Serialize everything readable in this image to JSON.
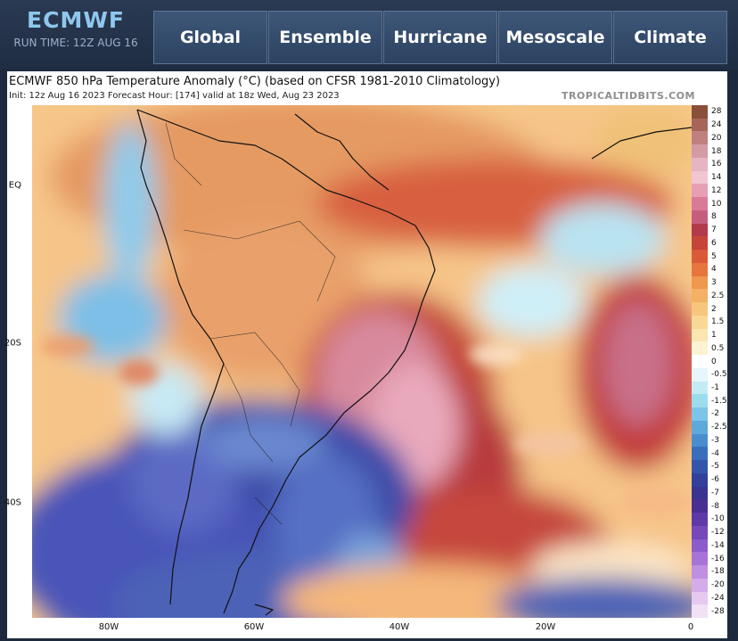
{
  "header": {
    "brand": "ECMWF",
    "run_time": "RUN TIME: 12Z AUG 16"
  },
  "nav": {
    "items": [
      {
        "label": "Global"
      },
      {
        "label": "Ensemble"
      },
      {
        "label": "Hurricane"
      },
      {
        "label": "Mesoscale"
      },
      {
        "label": "Climate"
      }
    ]
  },
  "map": {
    "title": "ECMWF 850 hPa Temperature Anomaly (°C) (based on CFSR 1981-2010 Climatology)",
    "subtitle": "Init: 12z Aug 16 2023   Forecast Hour: [174]   valid at 18z Wed, Aug 23 2023",
    "site": "TROPICALTIDBITS.COM",
    "lat_labels": [
      "EQ",
      "20S",
      "40S"
    ],
    "lon_labels": [
      "80W",
      "60W",
      "40W",
      "20W",
      "0"
    ]
  },
  "colorbar": {
    "labels": [
      "28",
      "24",
      "20",
      "18",
      "16",
      "14",
      "12",
      "10",
      "8",
      "7",
      "6",
      "5",
      "4",
      "3",
      "2.5",
      "2",
      "1.5",
      "1",
      "0.5",
      "0",
      "-0.5",
      "-1",
      "-1.5",
      "-2",
      "-2.5",
      "-3",
      "-4",
      "-5",
      "-6",
      "-7",
      "-8",
      "-10",
      "-12",
      "-14",
      "-16",
      "-18",
      "-20",
      "-24",
      "-28"
    ],
    "colors": [
      "#8a4f3b",
      "#a7655a",
      "#c08080",
      "#d49aa6",
      "#e6b4c2",
      "#f1c6d2",
      "#e89fb4",
      "#d87a98",
      "#c55e7e",
      "#b23a4a",
      "#c64539",
      "#d85a38",
      "#e6763d",
      "#ef9850",
      "#f4b064",
      "#f7c57c",
      "#f9d794",
      "#fbe6b1",
      "#fdf2d2",
      "#ffffff",
      "#e6f6fa",
      "#c2ebf4",
      "#9cdcef",
      "#7cc4e8",
      "#5fa8dc",
      "#4a8ccd",
      "#3a6ebd",
      "#3255ab",
      "#32409c",
      "#3a3390",
      "#4a2f92",
      "#5e3aa8",
      "#7548bb",
      "#8c5ccc",
      "#a674d8",
      "#bf8fe2",
      "#d5abe9",
      "#e6c8f0",
      "#f1e0f6"
    ]
  }
}
